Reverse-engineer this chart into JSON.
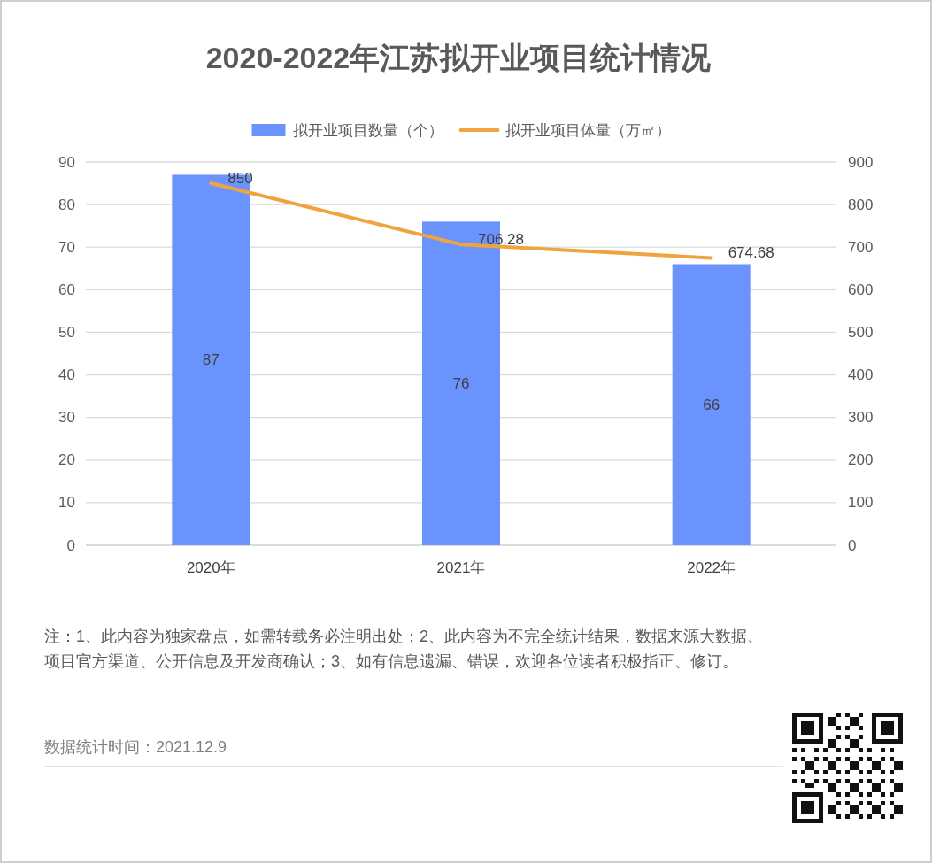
{
  "chart_data": {
    "type": "bar",
    "title": "2020-2022年江苏拟开业项目统计情况",
    "categories": [
      "2020年",
      "2021年",
      "2022年"
    ],
    "series": [
      {
        "name": "拟开业项目数量（个）",
        "color": "#6b93fd",
        "values": [
          87,
          76,
          66
        ]
      },
      {
        "name": "拟开业项目体量（万㎡）",
        "type": "line",
        "axis": "y2",
        "color": "#f0a43f",
        "values": [
          850,
          706.28,
          674.68
        ]
      }
    ],
    "ylim": [
      0,
      90
    ],
    "yticks": [
      0,
      10,
      20,
      30,
      40,
      50,
      60,
      70,
      80,
      90
    ],
    "y2lim": [
      0,
      900
    ],
    "y2ticks": [
      0,
      100,
      200,
      300,
      400,
      500,
      600,
      700,
      800,
      900
    ],
    "grid": "y",
    "legend": "top",
    "data_labels": true,
    "annotations": [
      "注：1、此内容为独家盘点，如需转载务必注明出处；2、此内容为不完全统计结果，数据来源大数据、项目官方渠道、公开信息及开发商确认；3、如有信息遗漏、错误，欢迎各位读者积极指正、修订。",
      "数据统计时间：2021.12.9"
    ]
  }
}
